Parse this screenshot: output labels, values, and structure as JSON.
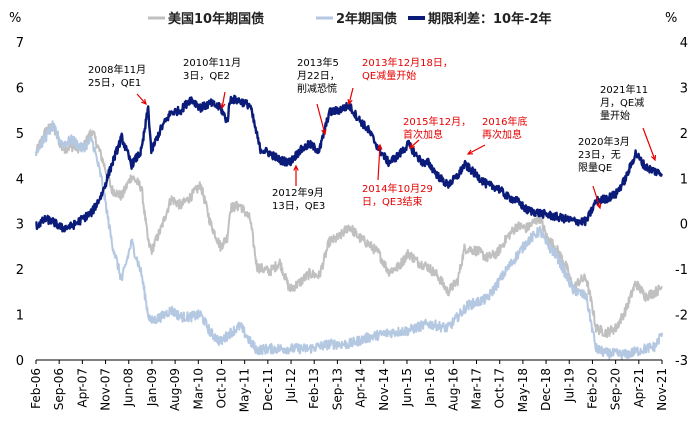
{
  "chart_data": {
    "type": "line",
    "title": "",
    "y_left_unit": "%",
    "y_right_unit": "%",
    "ylim_left": [
      0,
      7
    ],
    "ylim_right": [
      -3,
      4
    ],
    "yticks_left": [
      "0",
      "1",
      "2",
      "3",
      "4",
      "5",
      "6",
      "7"
    ],
    "yticks_right": [
      "-3",
      "-2",
      "-1",
      "0",
      "1",
      "2",
      "3",
      "4"
    ],
    "x_tick_labels": [
      "Feb-06",
      "Sep-06",
      "Apr-07",
      "Nov-07",
      "Jun-08",
      "Jan-09",
      "Aug-09",
      "Mar-10",
      "Oct-10",
      "May-11",
      "Dec-11",
      "Jul-12",
      "Feb-13",
      "Sep-13",
      "Apr-14",
      "Nov-14",
      "Jun-15",
      "Jan-16",
      "Aug-16",
      "Mar-17",
      "Oct-17",
      "May-18",
      "Dec-18",
      "Jul-19",
      "Feb-20",
      "Sep-20",
      "Apr-21",
      "Nov-21"
    ],
    "x_start": 2006.083,
    "x_end": 2021.917,
    "colors": {
      "us10y": "#c0c0c0",
      "us2y": "#b4c8e2",
      "spread": "#0b1b7a",
      "annotation_red": "#e60000",
      "annotation_black": "#000000"
    },
    "series": [
      {
        "name": "美国10年期国债",
        "key": "us10y",
        "axis": "left",
        "x": [
          2006.08,
          2006.33,
          2006.5,
          2006.75,
          2007.0,
          2007.25,
          2007.5,
          2007.75,
          2008.0,
          2008.25,
          2008.5,
          2008.75,
          2008.92,
          2009.0,
          2009.25,
          2009.5,
          2009.75,
          2010.0,
          2010.25,
          2010.5,
          2010.75,
          2010.92,
          2011.0,
          2011.25,
          2011.5,
          2011.67,
          2011.83,
          2012.0,
          2012.25,
          2012.5,
          2012.75,
          2013.0,
          2013.25,
          2013.5,
          2013.75,
          2014.0,
          2014.25,
          2014.5,
          2014.75,
          2015.0,
          2015.25,
          2015.5,
          2015.75,
          2016.0,
          2016.25,
          2016.5,
          2016.75,
          2016.92,
          2017.0,
          2017.25,
          2017.5,
          2017.75,
          2018.0,
          2018.25,
          2018.5,
          2018.83,
          2019.0,
          2019.25,
          2019.5,
          2019.67,
          2019.83,
          2020.0,
          2020.17,
          2020.25,
          2020.5,
          2020.75,
          2021.0,
          2021.25,
          2021.5,
          2021.75,
          2021.92
        ],
        "y": [
          4.55,
          5.05,
          5.15,
          4.65,
          4.7,
          4.65,
          5.05,
          4.45,
          3.75,
          3.6,
          4.05,
          3.8,
          2.6,
          2.4,
          2.9,
          3.55,
          3.4,
          3.6,
          3.85,
          3.0,
          2.5,
          2.7,
          3.35,
          3.4,
          3.1,
          2.05,
          2.0,
          1.95,
          2.15,
          1.55,
          1.7,
          1.9,
          1.85,
          2.6,
          2.7,
          2.95,
          2.7,
          2.55,
          2.35,
          1.95,
          2.05,
          2.35,
          2.15,
          2.05,
          1.85,
          1.5,
          1.75,
          2.45,
          2.45,
          2.4,
          2.25,
          2.35,
          2.7,
          2.95,
          2.9,
          3.15,
          2.7,
          2.45,
          2.05,
          1.55,
          1.75,
          1.8,
          1.1,
          0.7,
          0.6,
          0.7,
          1.1,
          1.7,
          1.4,
          1.5,
          1.6
        ]
      },
      {
        "name": "2年期国债",
        "key": "us2y",
        "axis": "left",
        "x": [
          2006.08,
          2006.33,
          2006.5,
          2006.75,
          2007.0,
          2007.25,
          2007.5,
          2007.75,
          2008.0,
          2008.25,
          2008.5,
          2008.75,
          2008.92,
          2009.0,
          2009.25,
          2009.5,
          2009.75,
          2010.0,
          2010.25,
          2010.5,
          2010.75,
          2011.0,
          2011.25,
          2011.5,
          2011.67,
          2012.0,
          2012.5,
          2013.0,
          2013.5,
          2014.0,
          2014.5,
          2015.0,
          2015.5,
          2016.0,
          2016.5,
          2017.0,
          2017.5,
          2018.0,
          2018.5,
          2018.83,
          2019.0,
          2019.25,
          2019.5,
          2019.67,
          2020.0,
          2020.17,
          2020.25,
          2020.5,
          2021.0,
          2021.5,
          2021.75,
          2021.92
        ],
        "y": [
          4.6,
          4.9,
          5.15,
          4.75,
          4.85,
          4.65,
          4.85,
          3.95,
          2.6,
          1.75,
          2.6,
          1.9,
          1.0,
          0.85,
          0.95,
          1.1,
          0.95,
          0.95,
          1.0,
          0.6,
          0.4,
          0.6,
          0.75,
          0.4,
          0.22,
          0.25,
          0.25,
          0.25,
          0.35,
          0.35,
          0.5,
          0.6,
          0.65,
          0.8,
          0.7,
          1.2,
          1.35,
          2.0,
          2.6,
          2.85,
          2.55,
          2.3,
          1.85,
          1.55,
          1.4,
          0.6,
          0.25,
          0.15,
          0.12,
          0.25,
          0.3,
          0.6
        ]
      },
      {
        "name": "期限利差：10年-2年",
        "key": "spread",
        "axis": "right",
        "x": [
          2006.08,
          2006.33,
          2006.5,
          2006.75,
          2007.0,
          2007.25,
          2007.5,
          2007.75,
          2008.0,
          2008.25,
          2008.5,
          2008.75,
          2008.92,
          2009.0,
          2009.25,
          2009.5,
          2009.75,
          2010.0,
          2010.25,
          2010.5,
          2010.75,
          2010.92,
          2011.0,
          2011.25,
          2011.5,
          2011.75,
          2012.0,
          2012.25,
          2012.5,
          2012.75,
          2013.0,
          2013.25,
          2013.5,
          2013.75,
          2014.0,
          2014.25,
          2014.5,
          2014.75,
          2015.0,
          2015.25,
          2015.5,
          2015.75,
          2015.92,
          2016.0,
          2016.25,
          2016.5,
          2016.75,
          2016.92,
          2017.0,
          2017.25,
          2017.5,
          2017.75,
          2018.0,
          2018.25,
          2018.5,
          2018.75,
          2019.0,
          2019.25,
          2019.5,
          2019.75,
          2020.0,
          2020.17,
          2020.25,
          2020.5,
          2020.75,
          2021.0,
          2021.25,
          2021.5,
          2021.75,
          2021.92
        ],
        "y": [
          -0.05,
          0.1,
          0.05,
          -0.1,
          -0.05,
          0.1,
          0.25,
          0.65,
          1.3,
          1.9,
          1.3,
          1.6,
          2.55,
          1.6,
          2.1,
          2.45,
          2.5,
          2.75,
          2.55,
          2.65,
          2.55,
          2.25,
          2.75,
          2.7,
          2.6,
          1.65,
          1.55,
          1.4,
          1.35,
          1.6,
          1.75,
          1.6,
          2.45,
          2.5,
          2.6,
          2.3,
          2.05,
          1.65,
          1.35,
          1.5,
          1.75,
          1.45,
          1.3,
          1.35,
          1.05,
          0.85,
          1.05,
          1.3,
          1.25,
          1.05,
          0.85,
          0.8,
          0.6,
          0.5,
          0.3,
          0.25,
          0.2,
          0.15,
          0.1,
          0.05,
          0.05,
          0.35,
          0.5,
          0.55,
          0.65,
          1.0,
          1.55,
          1.25,
          1.15,
          1.1
        ]
      }
    ],
    "annotations": [
      {
        "lines": [
          "2008年11月",
          "25日，QE1"
        ],
        "color": "black"
      },
      {
        "lines": [
          "2010年11月",
          "3日，QE2"
        ],
        "color": "black"
      },
      {
        "lines": [
          "2013年5",
          "月22日，",
          "削减恐慌"
        ],
        "color": "black"
      },
      {
        "lines": [
          "2012年9月",
          "13日，QE3"
        ],
        "color": "black"
      },
      {
        "lines": [
          "2013年12月18日，",
          "QE减量开始"
        ],
        "color": "red"
      },
      {
        "lines": [
          "2015年12月，",
          "首次加息"
        ],
        "color": "red"
      },
      {
        "lines": [
          "2016年底",
          "再次加息"
        ],
        "color": "red"
      },
      {
        "lines": [
          "2014年10月29",
          "日，QE3结束"
        ],
        "color": "red"
      },
      {
        "lines": [
          "2020年3月",
          "23日，无",
          "限量QE"
        ],
        "color": "black"
      },
      {
        "lines": [
          "2021年11",
          "月，QE减",
          "量开始"
        ],
        "color": "black"
      }
    ]
  }
}
